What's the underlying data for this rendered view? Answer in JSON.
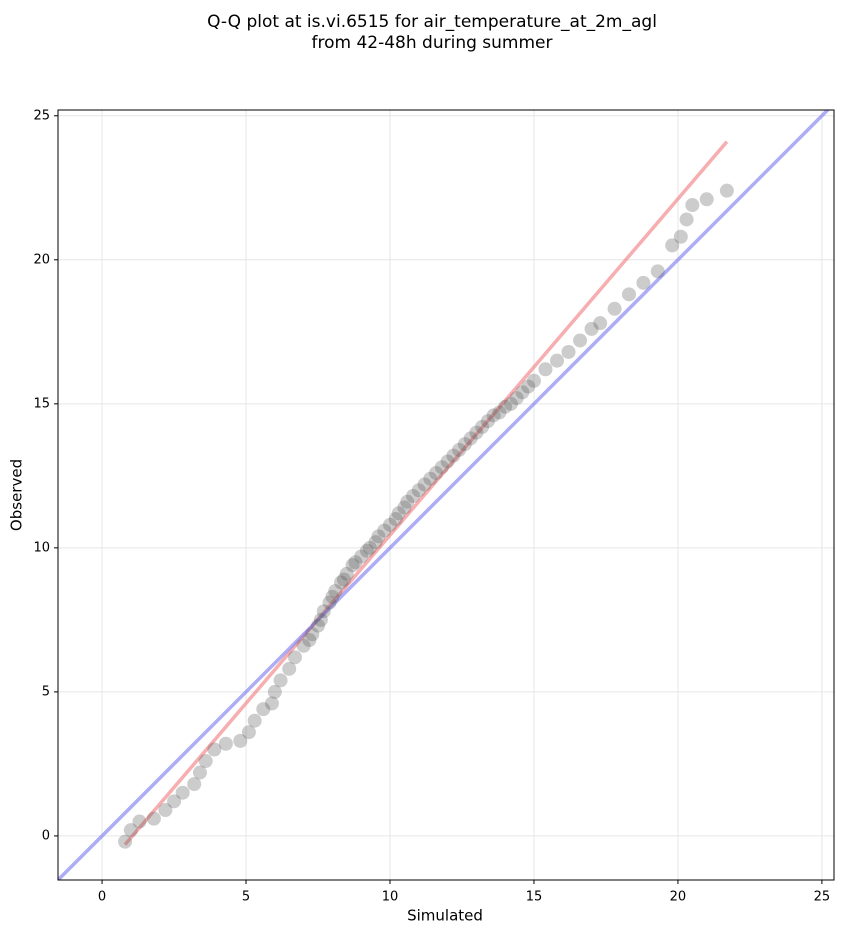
{
  "chart_data": {
    "type": "scatter",
    "title": [
      "Q-Q plot at is.vi.6515 for air_temperature_at_2m_agl",
      "from 42-48h during summer"
    ],
    "x_label": "Simulated",
    "y_label": "Observed",
    "xlim": [
      -1.53,
      25.42
    ],
    "ylim": [
      -1.53,
      25.2
    ],
    "xticks": [
      0,
      5,
      10,
      15,
      20,
      25
    ],
    "yticks": [
      0,
      5,
      10,
      15,
      20,
      25
    ],
    "grid": true,
    "point_color": "#555555",
    "x": [
      0.8,
      1.0,
      1.3,
      1.8,
      2.2,
      2.5,
      2.8,
      3.2,
      3.4,
      3.6,
      3.9,
      4.3,
      4.8,
      5.1,
      5.3,
      5.6,
      5.9,
      6.0,
      6.2,
      6.5,
      6.7,
      7.0,
      7.2,
      7.3,
      7.5,
      7.6,
      7.7,
      7.9,
      8.0,
      8.1,
      8.3,
      8.4,
      8.5,
      8.7,
      8.8,
      9.0,
      9.2,
      9.3,
      9.5,
      9.6,
      9.8,
      10.0,
      10.2,
      10.3,
      10.5,
      10.6,
      10.8,
      11.0,
      11.2,
      11.4,
      11.6,
      11.8,
      12.0,
      12.2,
      12.4,
      12.6,
      12.8,
      13.0,
      13.2,
      13.4,
      13.6,
      13.8,
      14.0,
      14.2,
      14.4,
      14.6,
      14.8,
      15.0,
      15.4,
      15.8,
      16.2,
      16.6,
      17.0,
      17.3,
      17.8,
      18.3,
      18.8,
      19.3,
      19.8,
      20.1,
      20.3,
      20.5,
      21.0,
      21.7
    ],
    "y": [
      -0.2,
      0.2,
      0.5,
      0.6,
      0.9,
      1.2,
      1.5,
      1.8,
      2.2,
      2.6,
      3.0,
      3.2,
      3.3,
      3.6,
      4.0,
      4.4,
      4.6,
      5.0,
      5.4,
      5.8,
      6.2,
      6.6,
      6.8,
      7.0,
      7.3,
      7.5,
      7.8,
      8.1,
      8.3,
      8.5,
      8.8,
      8.9,
      9.1,
      9.4,
      9.5,
      9.7,
      9.9,
      10.0,
      10.2,
      10.4,
      10.6,
      10.8,
      11.0,
      11.2,
      11.4,
      11.6,
      11.8,
      12.0,
      12.2,
      12.4,
      12.6,
      12.8,
      13.0,
      13.2,
      13.4,
      13.6,
      13.8,
      14.0,
      14.2,
      14.4,
      14.6,
      14.7,
      14.9,
      15.0,
      15.2,
      15.4,
      15.6,
      15.8,
      16.2,
      16.5,
      16.8,
      17.2,
      17.6,
      17.8,
      18.3,
      18.8,
      19.2,
      19.6,
      20.5,
      20.8,
      21.4,
      21.9,
      22.1,
      22.4
    ],
    "lines": [
      {
        "color": "#f0787c",
        "x": [
          0.8,
          21.7
        ],
        "y": [
          -0.3,
          24.1
        ]
      },
      {
        "color": "#7777ee",
        "x": [
          -1.53,
          25.42
        ],
        "y": [
          -1.53,
          25.42
        ]
      }
    ]
  }
}
